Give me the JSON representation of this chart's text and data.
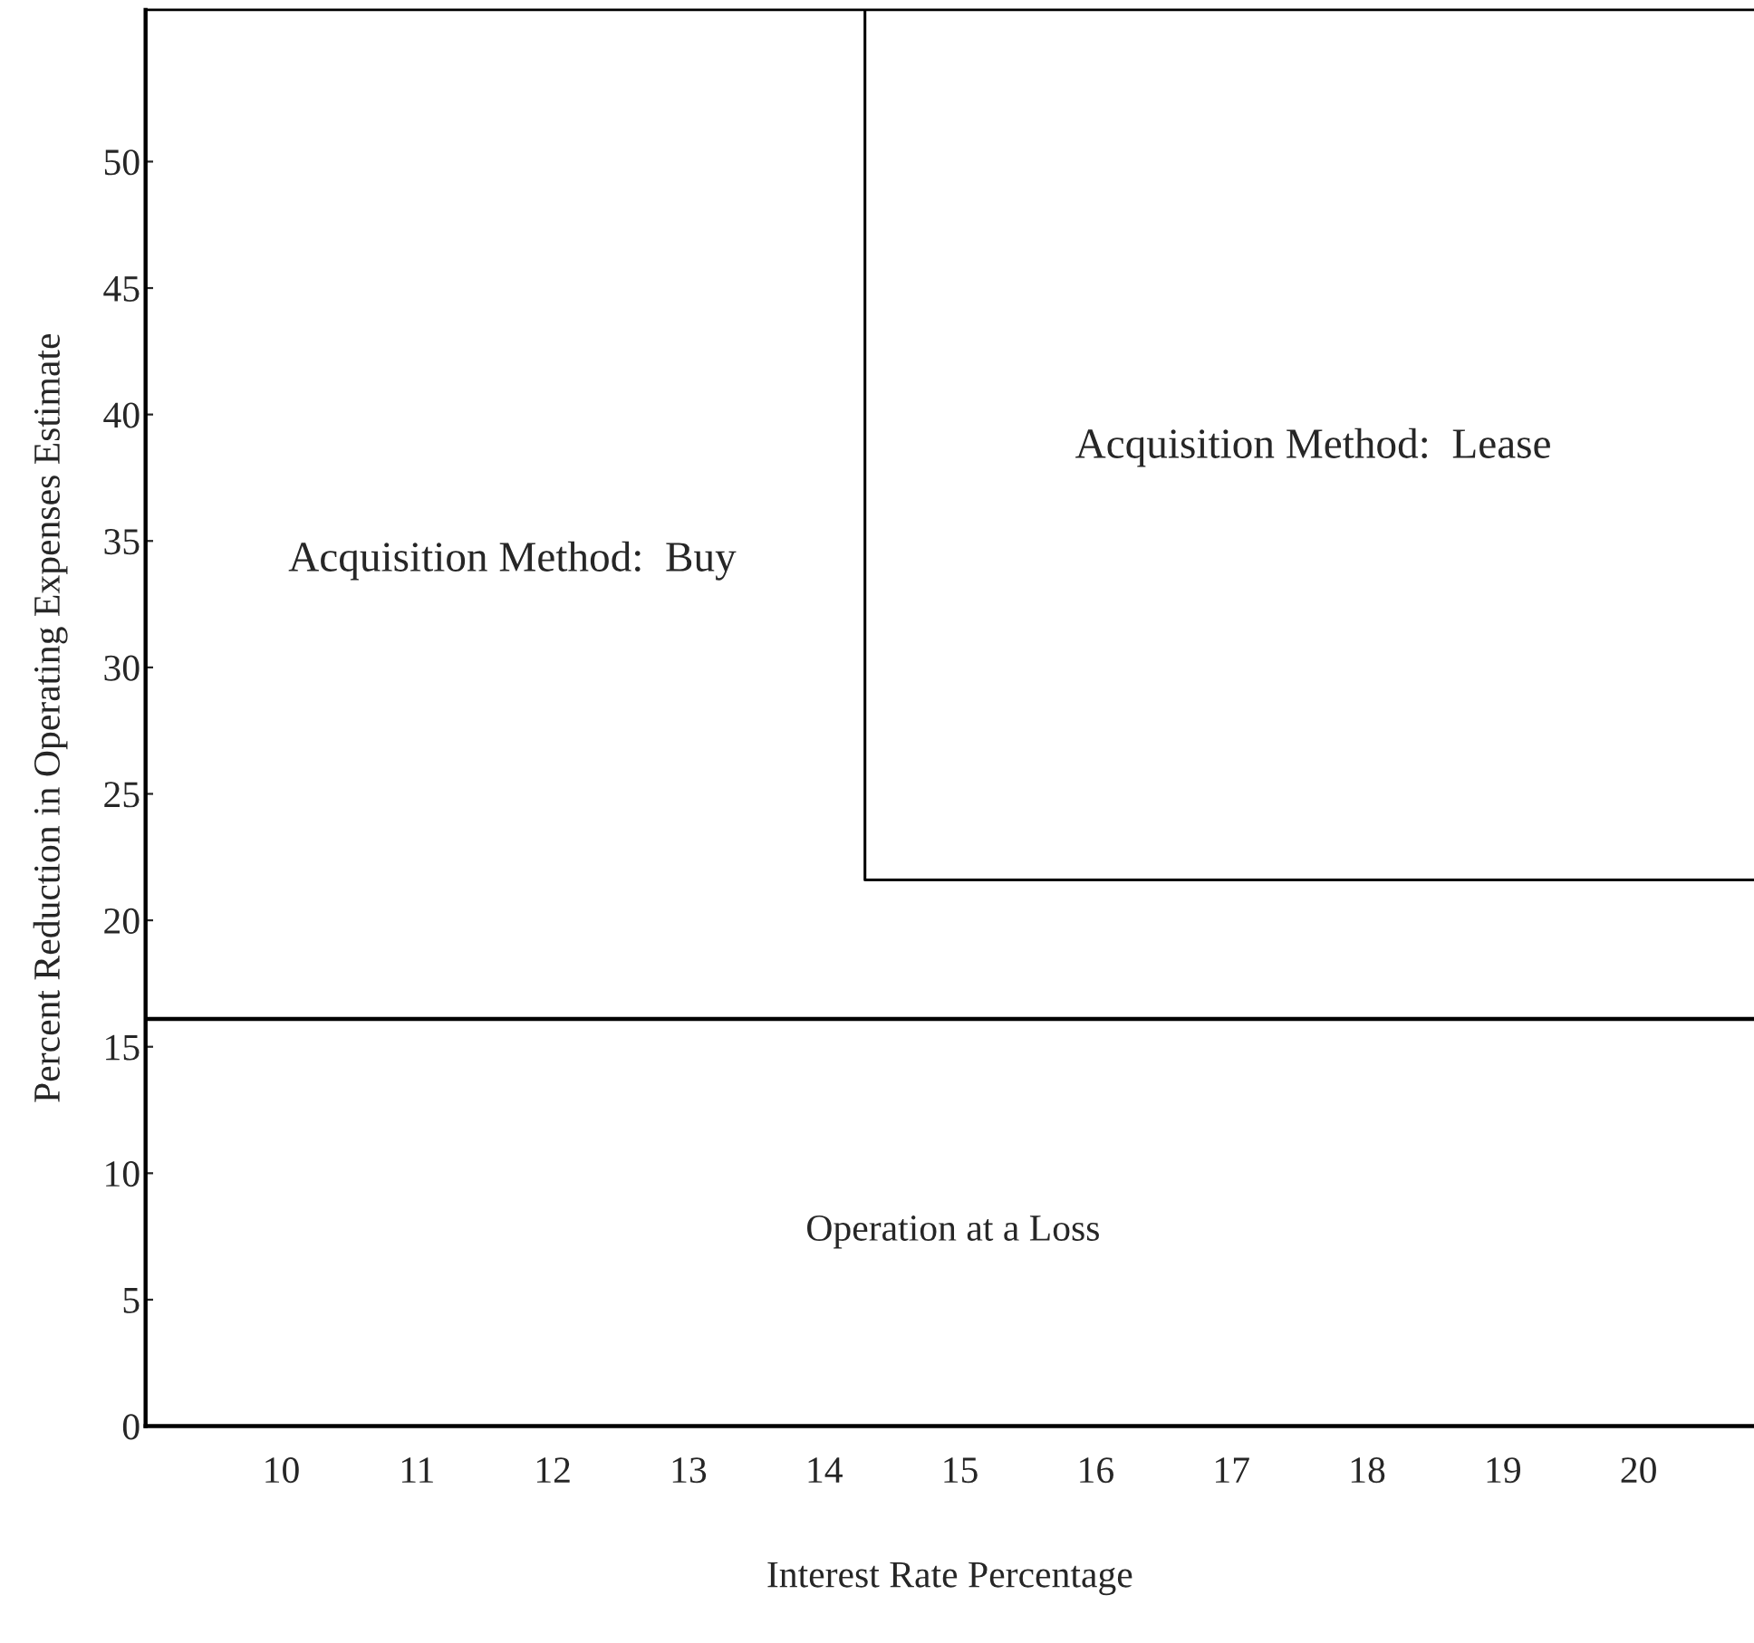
{
  "chart_data": {
    "type": "line",
    "xlabel": "Interest Rate Percentage",
    "ylabel": "Percent Reduction in Operating Expenses Estimate",
    "series": [
      {
        "x": [
          9,
          20.85
        ],
        "values": [
          16.1,
          16.1
        ],
        "color": "#000000"
      },
      {
        "x": [
          14.3,
          14.3,
          20.85
        ],
        "values": [
          56,
          21.6,
          21.6
        ],
        "color": "#000000"
      }
    ],
    "annotations": [
      "Acquisition Method:  Buy",
      "Acquisition Method:  Lease",
      "Operation at a Loss"
    ],
    "xlim": [
      9,
      20.85
    ],
    "xticks": [
      10,
      11,
      12,
      13,
      14,
      15,
      16,
      17,
      18,
      19,
      20
    ],
    "ylim": [
      0,
      56
    ],
    "yticks": [
      0,
      5,
      10,
      15,
      20,
      25,
      30,
      35,
      40,
      45,
      50
    ],
    "grid": false,
    "legend": false,
    "marker": "none",
    "line_style": "solid"
  }
}
